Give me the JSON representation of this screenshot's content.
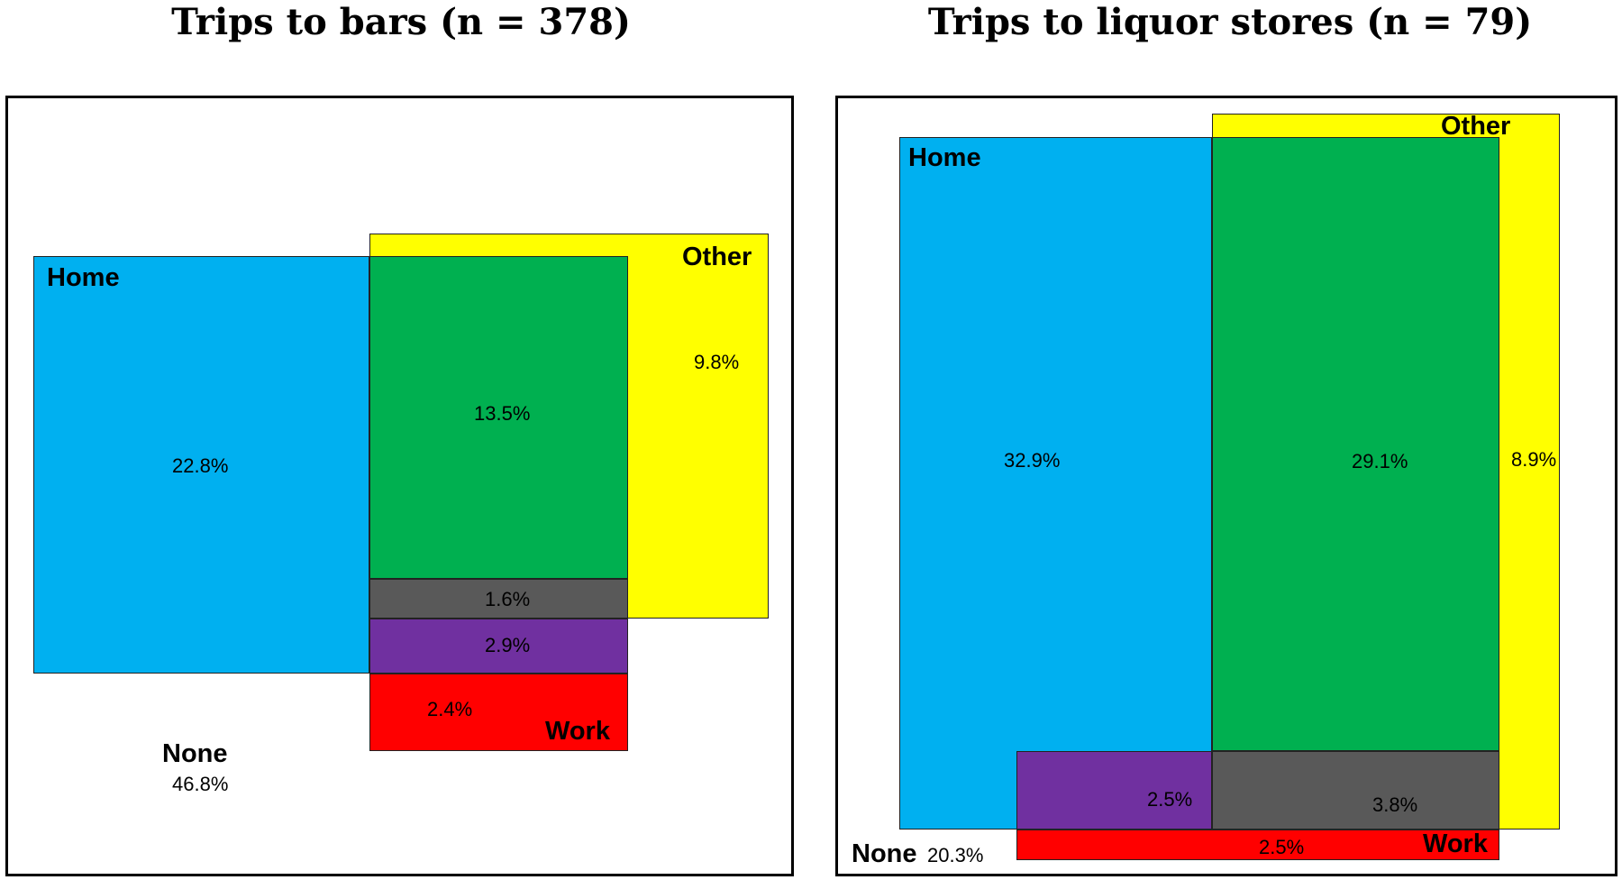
{
  "titles": {
    "left": "Trips to bars (n = 378)",
    "right": "Trips to liquor stores (n = 79)"
  },
  "colors": {
    "home_only": "#00b0f0",
    "home_other": "#00b050",
    "other_only": "#ffff00",
    "work_only": "#ff0000",
    "home_work": "#7030a0",
    "work_other": "#595959"
  },
  "bars": {
    "sets": {
      "home": "Home",
      "other": "Other",
      "work": "Work",
      "none": "None"
    },
    "regions": {
      "home_only": "22.8%",
      "home_other": "13.5%",
      "other_only": "9.8%",
      "home_work_other": "1.6%",
      "home_work": "2.9%",
      "work_only": "2.4%",
      "none": "46.8%"
    }
  },
  "liquor": {
    "sets": {
      "home": "Home",
      "other": "Other",
      "work": "Work",
      "none": "None"
    },
    "regions": {
      "home_only": "32.9%",
      "home_other": "29.1%",
      "other_only": "8.9%",
      "home_work": "2.5%",
      "home_work_other": "3.8%",
      "work_only": "2.5%",
      "none": "20.3%"
    }
  }
}
